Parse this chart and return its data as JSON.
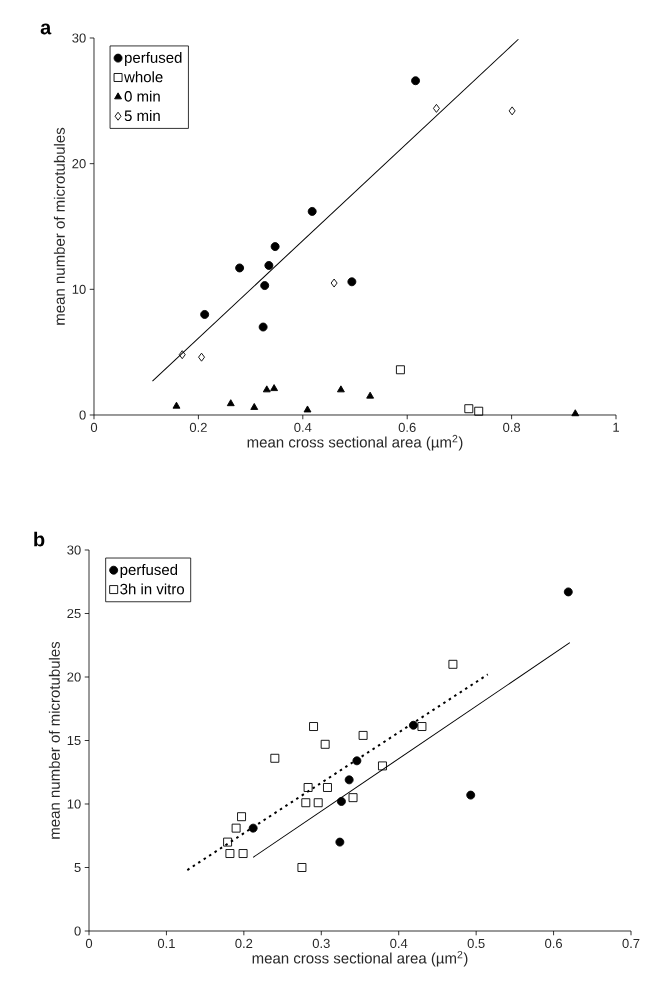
{
  "chart_data": [
    {
      "type": "scatter",
      "xlabel": "mean cross sectional area (µm$^{2}$)",
      "ylabel": "mean number of microtubules",
      "annotations": [
        "a"
      ],
      "xlim": [
        0,
        1
      ],
      "ylim": [
        0,
        30
      ],
      "xticks": [
        0,
        0.2,
        0.4,
        0.6,
        0.8,
        1
      ],
      "yticks": [
        0,
        10,
        20,
        30
      ],
      "legend": "top left",
      "grid": false,
      "series": [
        {
          "name": "perfused",
          "color": "#000000",
          "marker": "circle",
          "x": [
            0.212,
            0.279,
            0.324,
            0.327,
            0.335,
            0.347,
            0.418,
            0.494,
            0.616
          ],
          "values": [
            8.0,
            11.7,
            7.0,
            10.3,
            11.9,
            13.4,
            16.2,
            10.6,
            26.6
          ]
        },
        {
          "name": "whole",
          "color": "#000000",
          "marker": "square",
          "x": [
            0.587,
            0.718,
            0.737
          ],
          "values": [
            3.6,
            0.5,
            0.3
          ]
        },
        {
          "name": "0 min",
          "color": "#000000",
          "marker": "triangle",
          "x": [
            0.158,
            0.262,
            0.307,
            0.331,
            0.345,
            0.409,
            0.473,
            0.529,
            0.922
          ],
          "values": [
            0.7,
            0.9,
            0.6,
            2.0,
            2.1,
            0.4,
            2.0,
            1.5,
            0.1
          ]
        },
        {
          "name": "5 min",
          "color": "#000000",
          "marker": "diamond",
          "x": [
            0.169,
            0.206,
            0.46,
            0.656,
            0.801
          ],
          "values": [
            4.8,
            4.6,
            10.5,
            24.4,
            24.2
          ]
        },
        {
          "type": "line",
          "color": "#000000",
          "marker": "none",
          "line_style": "solid",
          "x": [
            0.112,
            0.813
          ],
          "values": [
            2.7,
            29.9
          ]
        }
      ]
    },
    {
      "type": "scatter",
      "xlabel": "mean cross sectional area (µm$^{2}$)",
      "ylabel": "mean number of microtubules",
      "annotations": [
        "b"
      ],
      "xlim": [
        0,
        0.7
      ],
      "ylim": [
        0,
        30
      ],
      "xticks": [
        0,
        0.1,
        0.2,
        0.3,
        0.4,
        0.5,
        0.6,
        0.7
      ],
      "yticks": [
        0,
        5,
        10,
        15,
        20,
        25,
        30
      ],
      "legend": "top left",
      "grid": false,
      "series": [
        {
          "name": "perfused",
          "color": "#000000",
          "marker": "circle",
          "x": [
            0.212,
            0.324,
            0.326,
            0.336,
            0.346,
            0.419,
            0.493,
            0.619
          ],
          "values": [
            8.1,
            7.0,
            10.2,
            11.9,
            13.4,
            16.2,
            10.7,
            26.7
          ]
        },
        {
          "name": "3h in vitro",
          "color": "#000000",
          "marker": "square",
          "x": [
            0.179,
            0.182,
            0.19,
            0.197,
            0.199,
            0.24,
            0.275,
            0.28,
            0.283,
            0.29,
            0.296,
            0.305,
            0.308,
            0.341,
            0.354,
            0.379,
            0.43,
            0.47
          ],
          "values": [
            7.0,
            6.1,
            8.1,
            9.0,
            6.1,
            13.6,
            5.0,
            10.1,
            11.3,
            16.1,
            10.1,
            14.7,
            11.3,
            10.5,
            15.4,
            13.0,
            16.1,
            21.0
          ]
        },
        {
          "type": "line",
          "color": "#000000",
          "marker": "none",
          "line_style": "solid",
          "x": [
            0.212,
            0.621
          ],
          "values": [
            5.8,
            22.7
          ]
        },
        {
          "type": "line",
          "color": "#000000",
          "marker": "none",
          "line_style": "dotted",
          "x": [
            0.127,
            0.515
          ],
          "values": [
            4.8,
            20.2
          ]
        }
      ]
    }
  ]
}
